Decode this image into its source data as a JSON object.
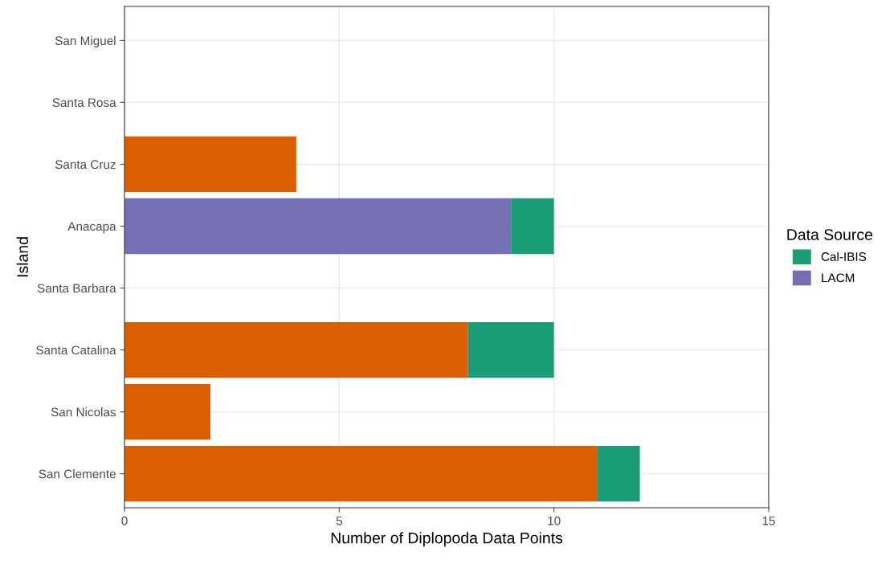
{
  "chart_data": {
    "type": "bar",
    "orientation": "horizontal",
    "stacked": true,
    "xlabel": "Number of Diplopoda Data Points",
    "ylabel": "Island",
    "legend_title": "Data Source",
    "categories": [
      "San Miguel",
      "Santa Rosa",
      "Santa Cruz",
      "Anacapa",
      "Santa Barbara",
      "Santa Catalina",
      "San Nicolas",
      "San Clemente"
    ],
    "series": [
      {
        "color": "#d95f02",
        "values": [
          0,
          0,
          4,
          0,
          0,
          8,
          2,
          11
        ]
      },
      {
        "name": "LACM",
        "color": "#7570b3",
        "values": [
          0,
          0,
          0,
          9,
          0,
          0,
          0,
          0
        ]
      },
      {
        "name": "Cal-IBIS",
        "color": "#1b9e77",
        "values": [
          0,
          0,
          0,
          1,
          0,
          2,
          0,
          1
        ]
      }
    ],
    "xlim": [
      0,
      15
    ],
    "xticks": [
      0,
      5,
      10,
      15
    ],
    "grid": true,
    "legend": "right"
  }
}
